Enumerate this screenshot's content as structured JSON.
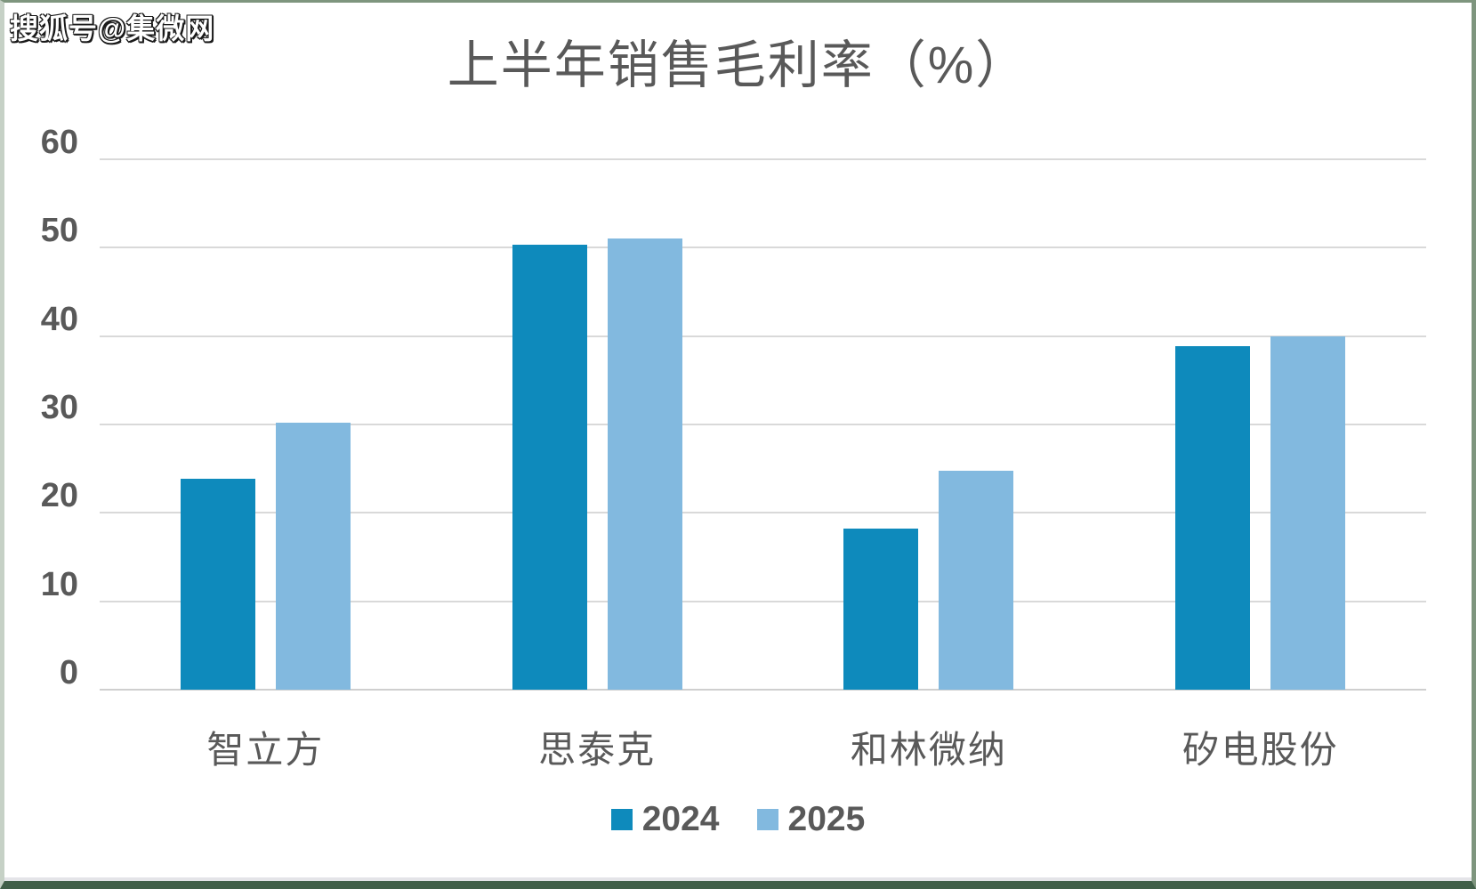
{
  "watermark": "搜狐号@集微网",
  "chart_data": {
    "type": "bar",
    "title": "上半年销售毛利率（%）",
    "categories": [
      "智立方",
      "思泰克",
      "和林微纳",
      "矽电股份"
    ],
    "series": [
      {
        "name": "2024",
        "color": "#0e8abc",
        "values": [
          23.9,
          50.3,
          18.2,
          38.9
        ]
      },
      {
        "name": "2025",
        "color": "#82b9df",
        "values": [
          30.2,
          51.0,
          24.8,
          40.0
        ]
      }
    ],
    "ylim": [
      0,
      60
    ],
    "yticks": [
      0,
      10,
      20,
      30,
      40,
      50,
      60
    ],
    "grid": true,
    "legend_position": "bottom",
    "xlabel": "",
    "ylabel": ""
  },
  "colors": {
    "text": "#595959",
    "gridline": "#d9d9d9",
    "frame_top_right": "#7e957e",
    "frame_left": "#c6d1c6",
    "frame_bottom": "#415f49",
    "background": "#ffffff"
  }
}
